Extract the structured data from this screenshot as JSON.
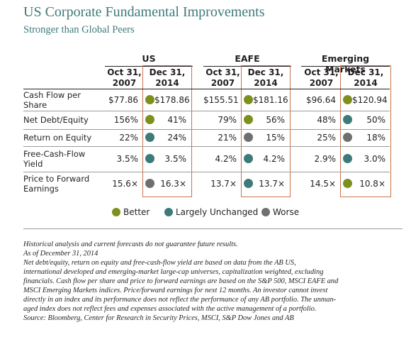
{
  "title": "US Corporate Fundamental Improvements",
  "subtitle": "Stronger than Global Peers",
  "groups": [
    {
      "name": "US",
      "col1": "Oct 31,\n2007",
      "col2": "Dec 31,\n2014"
    },
    {
      "name": "EAFE",
      "col1": "Oct 31,\n2007",
      "col2": "Dec 31,\n2014"
    },
    {
      "name": "Emerging Markets",
      "col1": "Oct 31,\n2007",
      "col2": "Dec 31,\n2014"
    }
  ],
  "rows": [
    {
      "label": "Cash Flow per\nShare",
      "us_2007": "$77.86",
      "us_2014": "$178.86",
      "us_status": "better",
      "eafe_2007": "$155.51",
      "eafe_2014": "$181.16",
      "eafe_status": "better",
      "em_2007": "$96.64",
      "em_2014": "$120.94",
      "em_status": "better"
    },
    {
      "label": "Net Debt/Equity",
      "us_2007": "156%",
      "us_2014": "41%",
      "us_status": "better",
      "eafe_2007": "79%",
      "eafe_2014": "56%",
      "eafe_status": "better",
      "em_2007": "48%",
      "em_2014": "50%",
      "em_status": "unchanged"
    },
    {
      "label": "Return on Equity",
      "us_2007": "22%",
      "us_2014": "24%",
      "us_status": "unchanged",
      "eafe_2007": "21%",
      "eafe_2014": "15%",
      "eafe_status": "worse",
      "em_2007": "25%",
      "em_2014": "18%",
      "em_status": "worse"
    },
    {
      "label": "Free-Cash-Flow\nYield",
      "us_2007": "3.5%",
      "us_2014": "3.5%",
      "us_status": "unchanged",
      "eafe_2007": "4.2%",
      "eafe_2014": "4.2%",
      "eafe_status": "unchanged",
      "em_2007": "2.9%",
      "em_2014": "3.0%",
      "em_status": "unchanged"
    },
    {
      "label": "Price to Forward\nEarnings",
      "us_2007": "15.6×",
      "us_2014": "16.3×",
      "us_status": "worse",
      "eafe_2007": "13.7×",
      "eafe_2014": "13.7×",
      "eafe_status": "unchanged",
      "em_2007": "14.5×",
      "em_2014": "10.8×",
      "em_status": "better"
    }
  ],
  "legend": [
    {
      "label": "Better",
      "status": "better"
    },
    {
      "label": "Largely Unchanged",
      "status": "unchanged"
    },
    {
      "label": "Worse",
      "status": "worse"
    }
  ],
  "colors": {
    "better": "#7f8f1e",
    "unchanged": "#3d7a7a",
    "worse": "#6f6f6f",
    "box": "#c8744b",
    "title": "#3d7a7a"
  },
  "footnotes": [
    "Historical analysis and current forecasts do not guarantee future results.",
    "As of December 31, 2014",
    "Net debt/equity, return on equity and free-cash-flow yield are based on data from the AB US,",
    "international developed and emerging-market large-cap universes, capitalization weighted, excluding",
    "financials. Cash flow per share and price to forward earnings are based on the S&P 500, MSCI EAFE and",
    "MSCI Emerging Markets indices. Price/forward earnings for next 12 months. An investor cannot invest",
    "directly in an index and its performance does not reflect the performance of any AB portfolio. The unman-",
    "aged index does not reflect fees and expenses associated with the active management of a portfolio.",
    "Source: Bloomberg, Center for Research in Security Prices, MSCI, S&P Dow Jones and AB"
  ]
}
